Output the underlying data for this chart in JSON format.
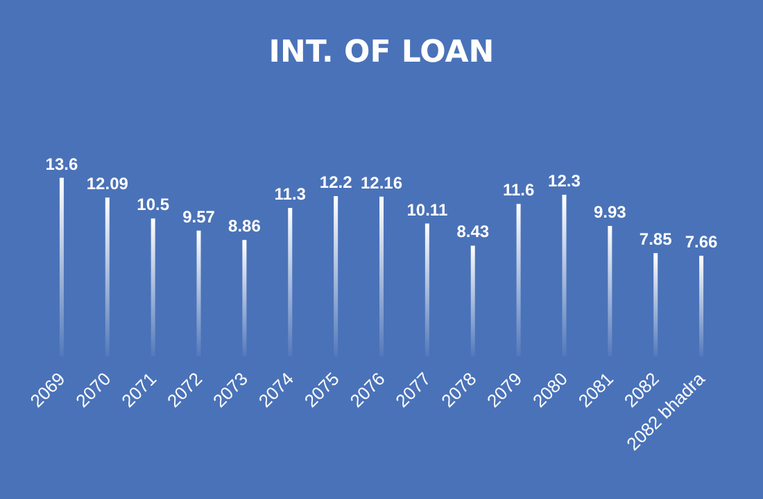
{
  "chart_data": {
    "type": "bar",
    "title": "INT. OF LOAN",
    "categories": [
      "2069",
      "2070",
      "2071",
      "2072",
      "2073",
      "2074",
      "2075",
      "2076",
      "2077",
      "2078",
      "2079",
      "2080",
      "2081",
      "2082",
      "2082 bhadra"
    ],
    "values": [
      13.6,
      12.09,
      10.5,
      9.57,
      8.86,
      11.3,
      12.2,
      12.16,
      10.11,
      8.43,
      11.6,
      12.3,
      9.93,
      7.85,
      7.66
    ],
    "color": "#ffffff",
    "data_labels": true
  }
}
